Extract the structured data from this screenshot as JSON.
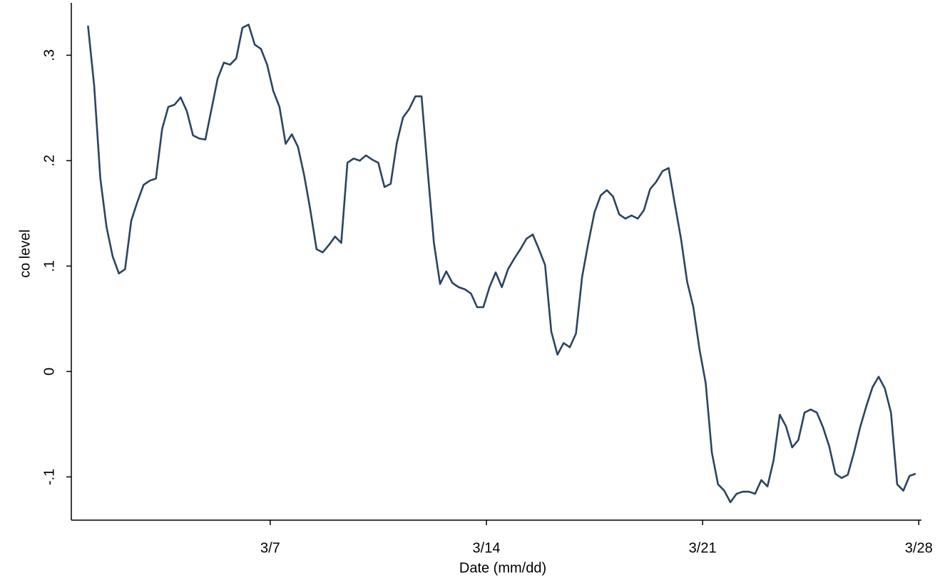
{
  "chart_data": {
    "type": "line",
    "x_label": "Date (mm/dd)",
    "y_label": "co level",
    "x": [
      1.1,
      1.3,
      1.5,
      1.7,
      1.9,
      2.1,
      2.3,
      2.5,
      2.7,
      2.9,
      3.1,
      3.3,
      3.5,
      3.7,
      3.9,
      4.1,
      4.3,
      4.5,
      4.7,
      4.9,
      5.1,
      5.3,
      5.5,
      5.7,
      5.9,
      6.1,
      6.3,
      6.5,
      6.7,
      6.9,
      7.1,
      7.3,
      7.5,
      7.7,
      7.9,
      8.1,
      8.3,
      8.5,
      8.7,
      8.9,
      9.1,
      9.3,
      9.5,
      9.7,
      9.9,
      10.1,
      10.3,
      10.5,
      10.7,
      10.9,
      11.1,
      11.3,
      11.5,
      11.7,
      11.9,
      12.1,
      12.3,
      12.5,
      12.7,
      12.9,
      13.1,
      13.3,
      13.5,
      13.7,
      13.9,
      14.1,
      14.3,
      14.5,
      14.7,
      14.9,
      15.1,
      15.3,
      15.5,
      15.7,
      15.9,
      16.1,
      16.3,
      16.5,
      16.7,
      16.9,
      17.1,
      17.3,
      17.5,
      17.7,
      17.9,
      18.1,
      18.3,
      18.5,
      18.7,
      18.9,
      19.1,
      19.3,
      19.5,
      19.7,
      19.9,
      20.1,
      20.3,
      20.5,
      20.7,
      20.9,
      21.1,
      21.3,
      21.5,
      21.7,
      21.9,
      22.1,
      22.3,
      22.5,
      22.7,
      22.9,
      23.1,
      23.3,
      23.5,
      23.7,
      23.9,
      24.1,
      24.3,
      24.5,
      24.7,
      24.9,
      25.1,
      25.3,
      25.5,
      25.7,
      25.9,
      26.1,
      26.3,
      26.5,
      26.7,
      26.9,
      27.1,
      27.3,
      27.5,
      27.7,
      27.9
    ],
    "values": [
      0.328,
      0.271,
      0.183,
      0.137,
      0.109,
      0.093,
      0.097,
      0.143,
      0.161,
      0.177,
      0.181,
      0.183,
      0.23,
      0.251,
      0.253,
      0.26,
      0.247,
      0.224,
      0.221,
      0.22,
      0.249,
      0.278,
      0.293,
      0.291,
      0.297,
      0.326,
      0.329,
      0.31,
      0.306,
      0.291,
      0.266,
      0.251,
      0.216,
      0.225,
      0.213,
      0.186,
      0.153,
      0.116,
      0.113,
      0.12,
      0.128,
      0.122,
      0.198,
      0.202,
      0.2,
      0.205,
      0.201,
      0.198,
      0.175,
      0.178,
      0.217,
      0.241,
      0.249,
      0.261,
      0.261,
      0.19,
      0.122,
      0.083,
      0.095,
      0.084,
      0.08,
      0.078,
      0.074,
      0.061,
      0.061,
      0.08,
      0.094,
      0.08,
      0.097,
      0.107,
      0.116,
      0.126,
      0.13,
      0.116,
      0.101,
      0.038,
      0.016,
      0.027,
      0.023,
      0.036,
      0.09,
      0.122,
      0.151,
      0.167,
      0.172,
      0.166,
      0.149,
      0.145,
      0.148,
      0.145,
      0.153,
      0.173,
      0.18,
      0.19,
      0.193,
      0.159,
      0.126,
      0.085,
      0.061,
      0.021,
      -0.011,
      -0.077,
      -0.107,
      -0.113,
      -0.124,
      -0.116,
      -0.114,
      -0.114,
      -0.116,
      -0.103,
      -0.109,
      -0.084,
      -0.041,
      -0.052,
      -0.072,
      -0.065,
      -0.039,
      -0.036,
      -0.039,
      -0.053,
      -0.071,
      -0.097,
      -0.101,
      -0.098,
      -0.077,
      -0.053,
      -0.033,
      -0.015,
      -0.005,
      -0.016,
      -0.039,
      -0.107,
      -0.113,
      -0.099,
      -0.097
    ],
    "color": "#2a4462",
    "xlim": [
      0.56,
      28.04
    ],
    "xticks": [
      {
        "value": 7,
        "label": "3/7"
      },
      {
        "value": 14,
        "label": "3/14"
      },
      {
        "value": 21,
        "label": "3/21"
      },
      {
        "value": 28,
        "label": "3/28"
      }
    ],
    "ylim": [
      -0.141,
      0.349
    ],
    "yticks": [
      {
        "value": -0.1,
        "label": "-.1"
      },
      0,
      {
        "value": 0.1,
        "label": ".1"
      },
      {
        "value": 0.2,
        "label": ".2"
      },
      {
        "value": 0.3,
        "label": ".3"
      }
    ],
    "grid": false
  }
}
